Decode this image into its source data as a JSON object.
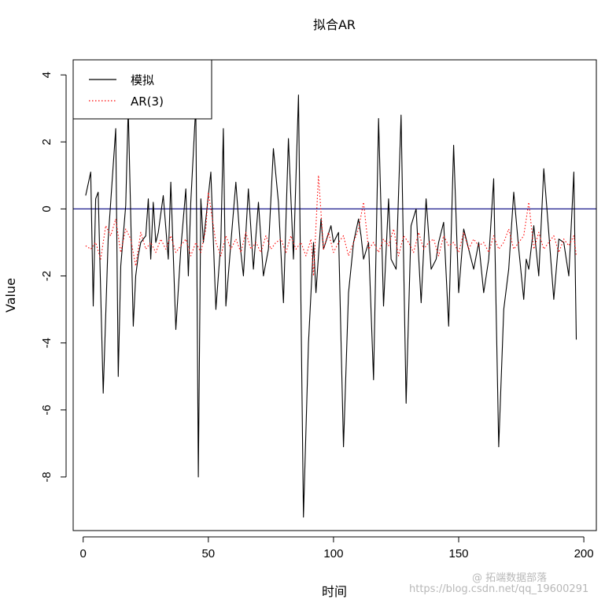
{
  "chart_data": {
    "type": "line",
    "title": "拟合AR",
    "xlabel": "时间",
    "ylabel": "Value",
    "xlim": [
      -4,
      205
    ],
    "ylim": [
      -9.6,
      4.45
    ],
    "x_ticks": [
      0,
      50,
      100,
      150,
      200
    ],
    "x_tick_labels": [
      "0",
      "50",
      "100",
      "150",
      "200"
    ],
    "y_ticks": [
      -8,
      -6,
      -4,
      -2,
      0,
      2,
      4
    ],
    "y_tick_labels": [
      "-8",
      "-6",
      "-4",
      "-2",
      "0",
      "2",
      "4"
    ],
    "grid": false,
    "legend": {
      "position": "top-left",
      "entries": [
        "模拟",
        "AR(3)"
      ]
    },
    "hline": {
      "y": 0,
      "color": "#1a1a8c"
    },
    "series": [
      {
        "name": "模拟",
        "color": "#000000",
        "style": "solid",
        "x": [
          1,
          3,
          4,
          5,
          6,
          8,
          10,
          13,
          14,
          15,
          17,
          18,
          20,
          21,
          22,
          23,
          25,
          26,
          27,
          28,
          29,
          30,
          32,
          34,
          35,
          37,
          39,
          41,
          42,
          43,
          45,
          46,
          47,
          48,
          51,
          53,
          55,
          56,
          57,
          59,
          61,
          63,
          64,
          66,
          68,
          70,
          72,
          74,
          76,
          78,
          80,
          82,
          84,
          86,
          88,
          90,
          92,
          93,
          95,
          96,
          99,
          100,
          102,
          104,
          106,
          108,
          110,
          111,
          112,
          114,
          116,
          118,
          120,
          122,
          123,
          125,
          127,
          129,
          131,
          133,
          135,
          137,
          139,
          141,
          142,
          144,
          146,
          148,
          150,
          152,
          154,
          156,
          158,
          160,
          162,
          164,
          166,
          168,
          170,
          172,
          174,
          176,
          177,
          178,
          180,
          182,
          184,
          186,
          188,
          190,
          192,
          194,
          196,
          197
        ],
        "values": [
          0.4,
          1.1,
          -2.9,
          0.3,
          0.5,
          -5.5,
          -0.9,
          2.4,
          -5.0,
          -1.7,
          0.1,
          3.0,
          -3.5,
          -2.0,
          -1.4,
          -1.0,
          -0.8,
          0.3,
          -1.5,
          0.2,
          -1.0,
          -0.7,
          0.4,
          -1.5,
          0.8,
          -3.6,
          -1.2,
          0.6,
          -2.0,
          0.2,
          3.1,
          -8.0,
          0.3,
          -1.0,
          1.1,
          -3.0,
          -1.0,
          2.4,
          -2.9,
          -1.0,
          0.8,
          -1.3,
          -2.0,
          0.6,
          -1.8,
          0.2,
          -2.0,
          -1.2,
          1.8,
          0.2,
          -2.8,
          2.1,
          -1.5,
          3.4,
          -9.2,
          -4.0,
          -1.0,
          -2.5,
          -0.3,
          -1.2,
          -0.5,
          -1.0,
          -0.7,
          -7.1,
          -2.5,
          -1.0,
          -0.3,
          -0.8,
          -1.5,
          -1.0,
          -5.1,
          2.7,
          -2.9,
          0.3,
          -1.5,
          -1.8,
          2.8,
          -5.8,
          -0.5,
          0.0,
          -2.8,
          0.3,
          -1.8,
          -1.5,
          -1.0,
          -0.4,
          -3.5,
          1.9,
          -2.5,
          -0.6,
          -1.2,
          -1.8,
          -1.0,
          -2.5,
          -1.5,
          0.9,
          -7.1,
          -3.0,
          -1.8,
          0.5,
          -1.2,
          -2.7,
          -1.5,
          -1.8,
          -0.5,
          -2.0,
          1.2,
          -0.7,
          -2.7,
          -0.9,
          -1.0,
          -2.0,
          1.1,
          -3.9
        ]
      },
      {
        "name": "AR(3)",
        "color": "#ff0000",
        "style": "dotted",
        "x": [
          1,
          3,
          5,
          7,
          9,
          11,
          13,
          15,
          17,
          19,
          21,
          23,
          25,
          27,
          29,
          31,
          33,
          35,
          37,
          39,
          41,
          43,
          45,
          47,
          49,
          50,
          53,
          55,
          57,
          59,
          61,
          63,
          65,
          67,
          69,
          71,
          73,
          75,
          77,
          79,
          81,
          83,
          85,
          87,
          89,
          91,
          92,
          94,
          96,
          98,
          100,
          102,
          104,
          106,
          108,
          110,
          112,
          114,
          116,
          118,
          120,
          122,
          124,
          126,
          128,
          130,
          132,
          134,
          136,
          138,
          140,
          142,
          144,
          146,
          148,
          150,
          152,
          154,
          156,
          158,
          160,
          162,
          164,
          166,
          168,
          170,
          172,
          174,
          176,
          178,
          180,
          182,
          184,
          186,
          188,
          190,
          192,
          194,
          196,
          197
        ],
        "values": [
          -1.1,
          -1.2,
          -1.0,
          -1.5,
          -0.5,
          -0.8,
          -0.3,
          -1.3,
          -0.6,
          -0.9,
          -1.7,
          -0.7,
          -1.2,
          -1.0,
          -1.3,
          -0.9,
          -1.2,
          -0.8,
          -1.3,
          -1.1,
          -0.9,
          -1.4,
          -1.0,
          -1.3,
          -0.6,
          0.5,
          -1.0,
          -1.4,
          -0.8,
          -1.2,
          -0.9,
          -1.3,
          -0.7,
          -1.2,
          -1.0,
          -1.3,
          -0.8,
          -1.2,
          -1.0,
          -0.9,
          -1.3,
          -0.8,
          -1.2,
          -1.0,
          -1.4,
          -0.9,
          -2.0,
          1.0,
          -1.2,
          -0.7,
          -1.3,
          -1.0,
          -0.8,
          -1.4,
          -1.0,
          -0.6,
          0.2,
          -1.2,
          -1.0,
          -1.3,
          -0.9,
          -1.1,
          -0.6,
          -1.4,
          -0.8,
          -1.0,
          -1.3,
          -0.7,
          -1.2,
          -1.0,
          -0.9,
          -1.4,
          -0.8,
          -1.1,
          -1.0,
          -1.3,
          -0.7,
          -1.2,
          -0.9,
          -1.1,
          -1.0,
          -1.3,
          -0.8,
          -1.2,
          -1.0,
          -0.6,
          -1.2,
          -1.0,
          -0.8,
          0.2,
          -1.2,
          -0.7,
          -1.2,
          -1.0,
          -0.8,
          -1.3,
          -0.9,
          -1.1,
          -0.8,
          -1.4
        ]
      }
    ]
  },
  "watermark": {
    "line1": "@ 拓端数据部落",
    "line2": "https://blog.csdn.net/qq_19600291"
  }
}
